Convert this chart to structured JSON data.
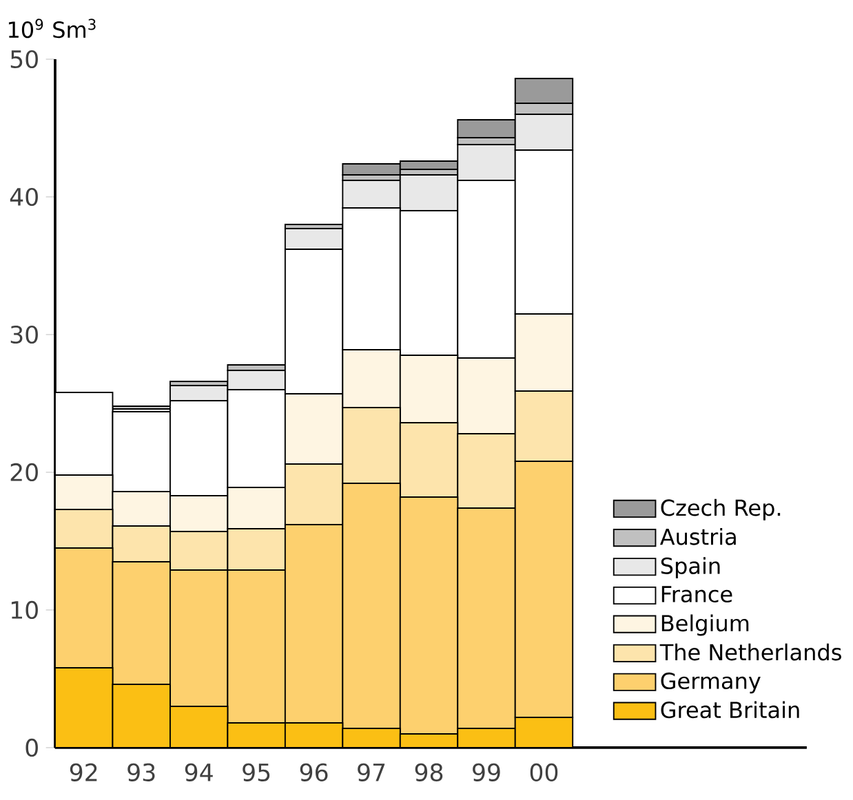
{
  "chart_data": {
    "type": "bar",
    "stacked": true,
    "ylabel": "10$^{9}$ Sm$^{3}$",
    "categories": [
      "92",
      "93",
      "94",
      "95",
      "96",
      "97",
      "98",
      "99",
      "00"
    ],
    "series": [
      {
        "name": "Great Britain",
        "color": "#fbbf14",
        "values": [
          5.8,
          4.6,
          3.0,
          1.8,
          1.8,
          1.4,
          1.0,
          1.4,
          2.2
        ]
      },
      {
        "name": "Germany",
        "color": "#fdd06e",
        "values": [
          8.7,
          8.9,
          9.9,
          11.1,
          14.4,
          17.8,
          17.2,
          16.0,
          18.6
        ]
      },
      {
        "name": "The Netherlands",
        "color": "#fde4ac",
        "values": [
          2.8,
          2.6,
          2.8,
          3.0,
          4.4,
          5.5,
          5.4,
          5.4,
          5.1
        ]
      },
      {
        "name": "Belgium",
        "color": "#fef5e2",
        "values": [
          2.5,
          2.5,
          2.6,
          3.0,
          5.1,
          4.2,
          4.9,
          5.5,
          5.6
        ]
      },
      {
        "name": "France",
        "color": "#ffffff",
        "values": [
          6.0,
          5.8,
          6.9,
          7.1,
          10.5,
          10.3,
          10.5,
          12.9,
          11.9
        ]
      },
      {
        "name": "Spain",
        "color": "#e8e8e8",
        "values": [
          0,
          0.2,
          1.1,
          1.4,
          1.5,
          2.0,
          2.6,
          2.6,
          2.6
        ]
      },
      {
        "name": "Austria",
        "color": "#c0c0c0",
        "values": [
          0,
          0.2,
          0.3,
          0.4,
          0.3,
          0.4,
          0.4,
          0.5,
          0.8
        ]
      },
      {
        "name": "Czech Rep.",
        "color": "#9a9a9a",
        "values": [
          0,
          0,
          0,
          0,
          0,
          0.8,
          0.6,
          1.3,
          1.8
        ]
      }
    ],
    "ylim": [
      0,
      50
    ],
    "yticks": [
      0,
      10,
      20,
      30,
      40,
      50
    ],
    "legend": "right",
    "grid": false
  }
}
